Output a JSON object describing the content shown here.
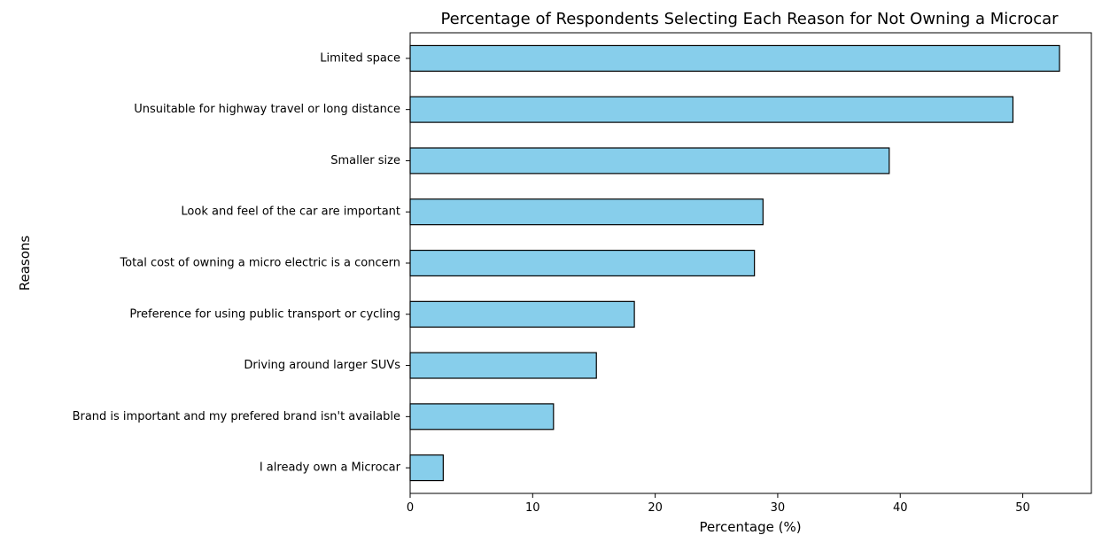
{
  "chart_data": {
    "type": "bar",
    "orientation": "horizontal",
    "title": "Percentage of Respondents Selecting Each Reason for Not Owning a Microcar",
    "xlabel": "Percentage (%)",
    "ylabel": "Reasons",
    "categories": [
      "Limited space",
      "Unsuitable for highway travel or long distance",
      "Smaller size",
      "Look and feel of the car are important",
      "Total cost of owning a micro electric is a concern",
      "Preference for using public transport or cycling",
      "Driving around larger SUVs",
      "Brand is important and my prefered brand isn't available",
      "I already own a Microcar"
    ],
    "values": [
      53.0,
      49.2,
      39.1,
      28.8,
      28.1,
      18.3,
      15.2,
      11.7,
      2.7
    ],
    "xlim": [
      0,
      55.6
    ],
    "xticks": [
      0,
      10,
      20,
      30,
      40,
      50
    ],
    "grid": false,
    "colors": {
      "bar_fill": "#87ceeb",
      "bar_edge": "#000000"
    }
  }
}
